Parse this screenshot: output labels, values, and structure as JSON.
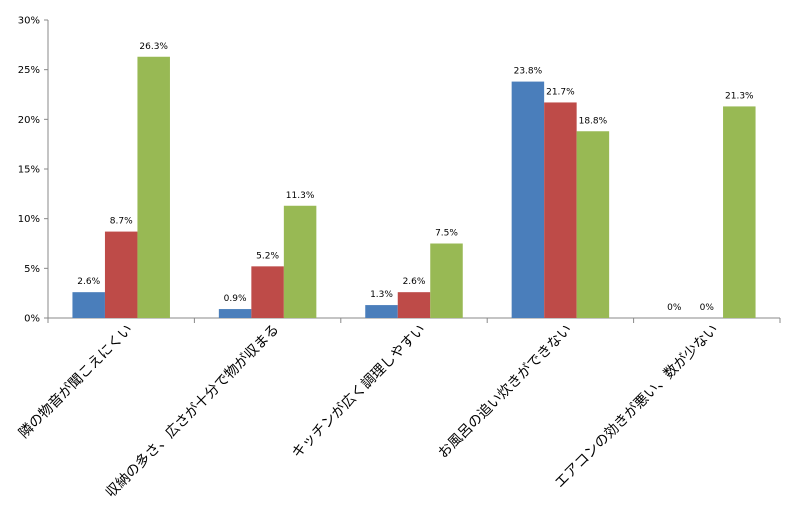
{
  "chart_data": {
    "type": "bar",
    "categories": [
      "隣の物音が聞こえにくい",
      "収納の多さ、広さが十分で物が収まる",
      "キッチンが広く調理しやすい",
      "お風呂の追い炊きができない",
      "エアコンの効きが悪い、数が少ない"
    ],
    "series": [
      {
        "values": [
          2.6,
          0.9,
          1.3,
          23.8,
          0
        ],
        "labels": [
          "2.6%",
          "0.9%",
          "1.3%",
          "23.8%",
          "0%"
        ],
        "color": "#4a7ebb"
      },
      {
        "values": [
          8.7,
          5.2,
          2.6,
          21.7,
          0
        ],
        "labels": [
          "8.7%",
          "5.2%",
          "2.6%",
          "21.7%",
          "0%"
        ],
        "color": "#be4b48"
      },
      {
        "values": [
          26.3,
          11.3,
          7.5,
          18.8,
          21.3
        ],
        "labels": [
          "26.3%",
          "11.3%",
          "7.5%",
          "18.8%",
          "21.3%"
        ],
        "color": "#98b954"
      }
    ],
    "yticks": [
      "0%",
      "5%",
      "10%",
      "15%",
      "20%",
      "25%",
      "30%"
    ],
    "ylim": [
      0,
      30
    ],
    "grid": false,
    "legend": "none"
  }
}
